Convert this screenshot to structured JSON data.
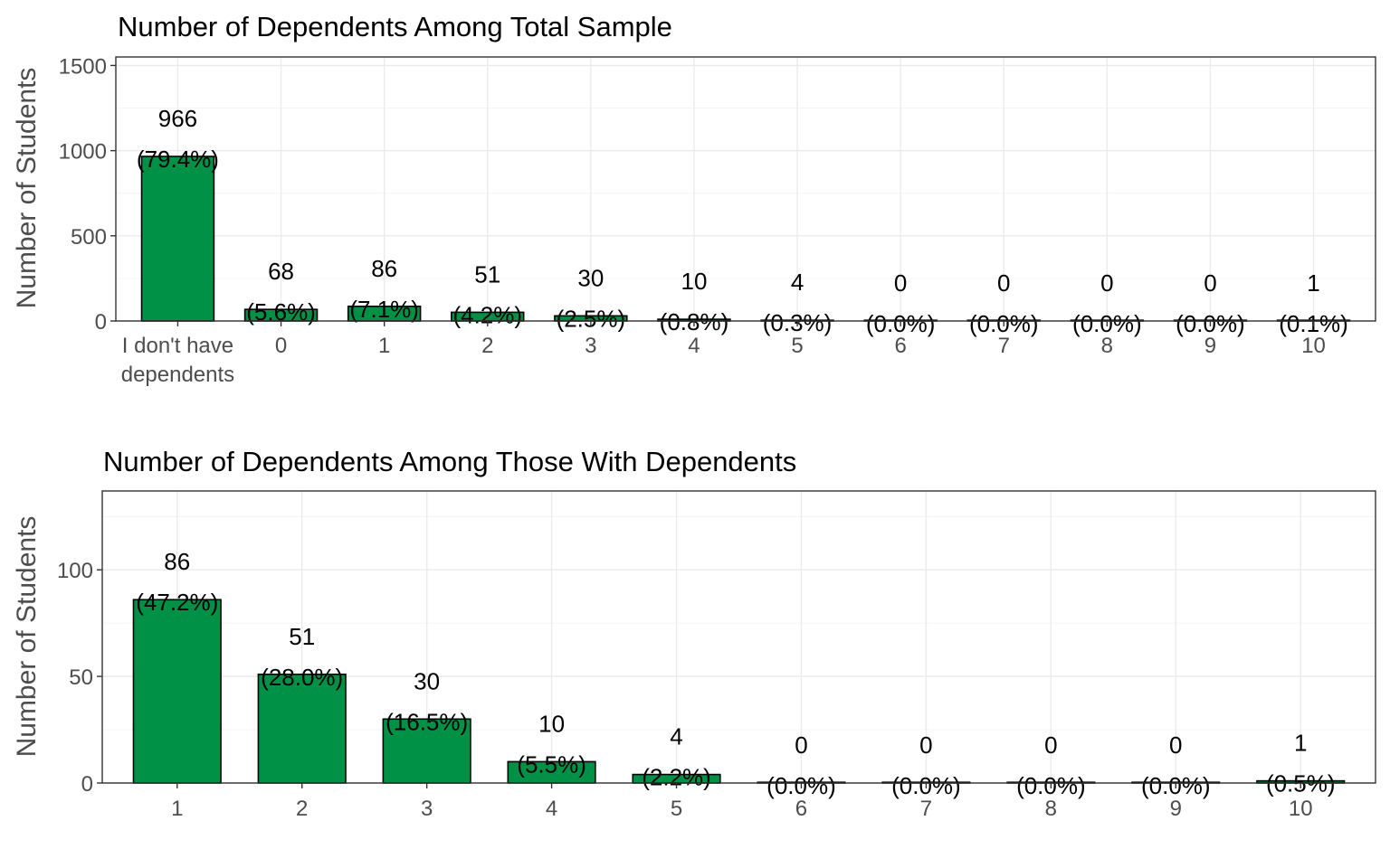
{
  "chart_data": [
    {
      "type": "bar",
      "title": "Number of Dependents Among Total Sample",
      "xlabel": "",
      "ylabel": "Number of Students",
      "categories": [
        "I don't have dependents",
        "0",
        "1",
        "2",
        "3",
        "4",
        "5",
        "6",
        "7",
        "8",
        "9",
        "10"
      ],
      "values": [
        966,
        68,
        86,
        51,
        30,
        10,
        4,
        0,
        0,
        0,
        0,
        1
      ],
      "percent_labels": [
        "(79.4%)",
        "(5.6%)",
        "(7.1%)",
        "(4.2%)",
        "(2.5%)",
        "(0.8%)",
        "(0.3%)",
        "(0.0%)",
        "(0.0%)",
        "(0.0%)",
        "(0.0%)",
        "(0.1%)"
      ],
      "yticks": [
        0,
        500,
        1000,
        1500
      ],
      "ylim": [
        0,
        1550
      ],
      "grid": true,
      "bar_color": "#009147"
    },
    {
      "type": "bar",
      "title": "Number of Dependents Among Those With Dependents",
      "xlabel": "",
      "ylabel": "Number of Students",
      "categories": [
        "1",
        "2",
        "3",
        "4",
        "5",
        "6",
        "7",
        "8",
        "9",
        "10"
      ],
      "values": [
        86,
        51,
        30,
        10,
        4,
        0,
        0,
        0,
        0,
        1
      ],
      "percent_labels": [
        "(47.2%)",
        "(28.0%)",
        "(16.5%)",
        "(5.5%)",
        "(2.2%)",
        "(0.0%)",
        "(0.0%)",
        "(0.0%)",
        "(0.0%)",
        "(0.5%)"
      ],
      "yticks": [
        0,
        50,
        100
      ],
      "ylim": [
        0,
        137
      ],
      "grid": true,
      "bar_color": "#009147"
    }
  ]
}
